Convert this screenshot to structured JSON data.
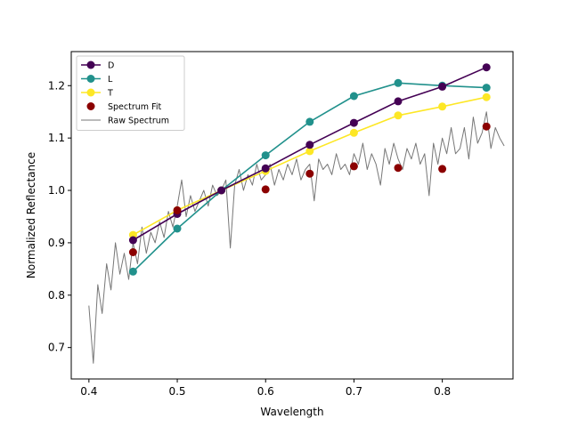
{
  "chart_data": {
    "type": "line",
    "title": "",
    "xlabel": "Wavelength",
    "ylabel": "Normalized Reflectance",
    "xlim": [
      0.38,
      0.88
    ],
    "ylim": [
      0.64,
      1.265
    ],
    "xticks": [
      "0.4",
      "0.5",
      "0.6",
      "0.7",
      "0.8"
    ],
    "yticks": [
      "0.7",
      "0.8",
      "0.9",
      "1.0",
      "1.1",
      "1.2"
    ],
    "xtick_values": [
      0.4,
      0.5,
      0.6,
      0.7,
      0.8
    ],
    "ytick_values": [
      0.7,
      0.8,
      0.9,
      1.0,
      1.1,
      1.2
    ],
    "grid": false,
    "legend_position": "top-left",
    "x": [
      0.45,
      0.5,
      0.55,
      0.6,
      0.65,
      0.7,
      0.75,
      0.8,
      0.85
    ],
    "series": [
      {
        "name": "D",
        "color": "#440154",
        "style": "line-marker",
        "values": [
          0.905,
          0.955,
          1.0,
          1.042,
          1.087,
          1.129,
          1.17,
          1.198,
          1.235
        ]
      },
      {
        "name": "L",
        "color": "#21918c",
        "style": "line-marker",
        "values": [
          0.845,
          0.927,
          1.0,
          1.067,
          1.131,
          1.18,
          1.205,
          1.2,
          1.196
        ]
      },
      {
        "name": "T",
        "color": "#fde725",
        "style": "line-marker",
        "values": [
          0.915,
          0.962,
          1.0,
          1.037,
          1.075,
          1.11,
          1.143,
          1.16,
          1.178
        ]
      },
      {
        "name": "Spectrum Fit",
        "color": "#8b0000",
        "style": "scatter",
        "x": [
          0.45,
          0.5,
          0.6,
          0.65,
          0.7,
          0.75,
          0.8,
          0.85
        ],
        "values": [
          0.882,
          0.962,
          1.002,
          1.032,
          1.046,
          1.043,
          1.041,
          1.122
        ]
      },
      {
        "name": "Raw Spectrum",
        "color": "#777777",
        "style": "thin-line",
        "x": [
          0.4,
          0.405,
          0.41,
          0.415,
          0.42,
          0.425,
          0.43,
          0.435,
          0.44,
          0.445,
          0.45,
          0.455,
          0.46,
          0.465,
          0.47,
          0.475,
          0.48,
          0.485,
          0.49,
          0.495,
          0.5,
          0.505,
          0.51,
          0.515,
          0.52,
          0.525,
          0.53,
          0.535,
          0.54,
          0.545,
          0.55,
          0.555,
          0.56,
          0.565,
          0.57,
          0.575,
          0.58,
          0.585,
          0.59,
          0.595,
          0.6,
          0.605,
          0.61,
          0.615,
          0.62,
          0.625,
          0.63,
          0.635,
          0.64,
          0.645,
          0.65,
          0.655,
          0.66,
          0.665,
          0.67,
          0.675,
          0.68,
          0.685,
          0.69,
          0.695,
          0.7,
          0.705,
          0.71,
          0.715,
          0.72,
          0.725,
          0.73,
          0.735,
          0.74,
          0.745,
          0.75,
          0.755,
          0.76,
          0.765,
          0.77,
          0.775,
          0.78,
          0.785,
          0.79,
          0.795,
          0.8,
          0.805,
          0.81,
          0.815,
          0.82,
          0.825,
          0.83,
          0.835,
          0.84,
          0.845,
          0.85,
          0.855,
          0.86,
          0.865,
          0.87
        ],
        "values": [
          0.78,
          0.67,
          0.82,
          0.765,
          0.86,
          0.81,
          0.9,
          0.84,
          0.88,
          0.83,
          0.9,
          0.86,
          0.93,
          0.88,
          0.92,
          0.9,
          0.94,
          0.91,
          0.96,
          0.93,
          0.97,
          1.02,
          0.95,
          0.99,
          0.96,
          0.98,
          1.0,
          0.97,
          1.01,
          0.99,
          1.0,
          1.02,
          0.89,
          1.01,
          1.04,
          1.0,
          1.03,
          1.01,
          1.05,
          1.02,
          1.03,
          1.05,
          1.01,
          1.04,
          1.02,
          1.05,
          1.03,
          1.06,
          1.02,
          1.04,
          1.05,
          0.98,
          1.06,
          1.04,
          1.05,
          1.03,
          1.07,
          1.04,
          1.05,
          1.03,
          1.07,
          1.05,
          1.09,
          1.04,
          1.07,
          1.05,
          1.01,
          1.08,
          1.05,
          1.09,
          1.06,
          1.04,
          1.08,
          1.06,
          1.09,
          1.05,
          1.07,
          0.99,
          1.09,
          1.05,
          1.1,
          1.07,
          1.12,
          1.07,
          1.08,
          1.12,
          1.06,
          1.14,
          1.09,
          1.11,
          1.15,
          1.08,
          1.12,
          1.1,
          1.085
        ]
      }
    ]
  }
}
